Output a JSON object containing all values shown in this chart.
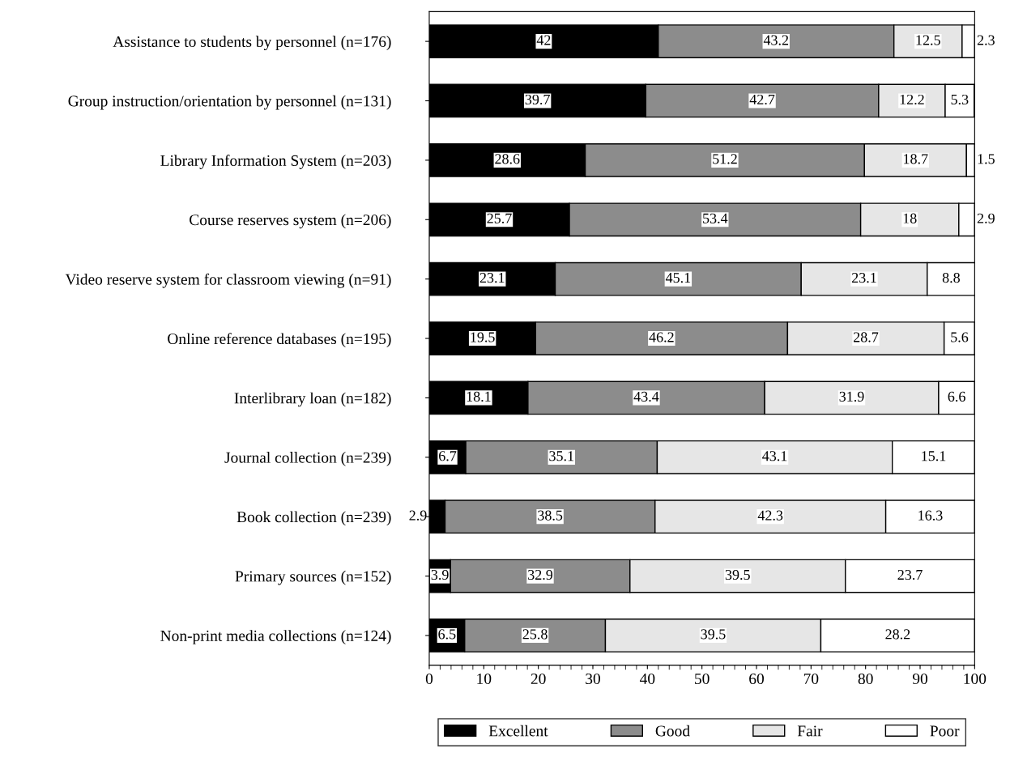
{
  "chart_data": {
    "type": "bar",
    "orientation": "horizontal",
    "stacked": true,
    "data_labels": true,
    "legend": "bottom",
    "grid": false,
    "categories": [
      "Assistance to students by personnel (n=176)",
      "Group instruction/orientation by personnel (n=131)",
      "Library Information System (n=203)",
      "Course reserves system (n=206)",
      "Video reserve system for classroom viewing (n=91)",
      "Online reference databases (n=195)",
      "Interlibrary loan (n=182)",
      "Journal collection (n=239)",
      "Book collection (n=239)",
      "Primary sources (n=152)",
      "Non-print media collections (n=124)"
    ],
    "xlim": [
      0,
      100
    ],
    "xticks": [
      0,
      10,
      20,
      30,
      40,
      50,
      60,
      70,
      80,
      90,
      100
    ],
    "series": [
      {
        "name": "Excellent",
        "color": "#000000",
        "values": [
          42,
          39.7,
          28.6,
          25.7,
          23.1,
          19.5,
          18.1,
          6.7,
          2.9,
          3.9,
          6.5
        ]
      },
      {
        "name": "Good",
        "color": "#8c8c8c",
        "values": [
          43.2,
          42.7,
          51.2,
          53.4,
          45.1,
          46.2,
          43.4,
          35.1,
          38.5,
          32.9,
          25.8
        ]
      },
      {
        "name": "Fair",
        "color": "#e6e6e6",
        "values": [
          12.5,
          12.2,
          18.7,
          18,
          23.1,
          28.7,
          31.9,
          43.1,
          42.3,
          39.5,
          39.5
        ]
      },
      {
        "name": "Poor",
        "color": "#ffffff",
        "values": [
          2.3,
          5.3,
          1.5,
          2.9,
          8.8,
          5.6,
          6.6,
          15.1,
          16.3,
          23.7,
          28.2
        ]
      }
    ]
  }
}
